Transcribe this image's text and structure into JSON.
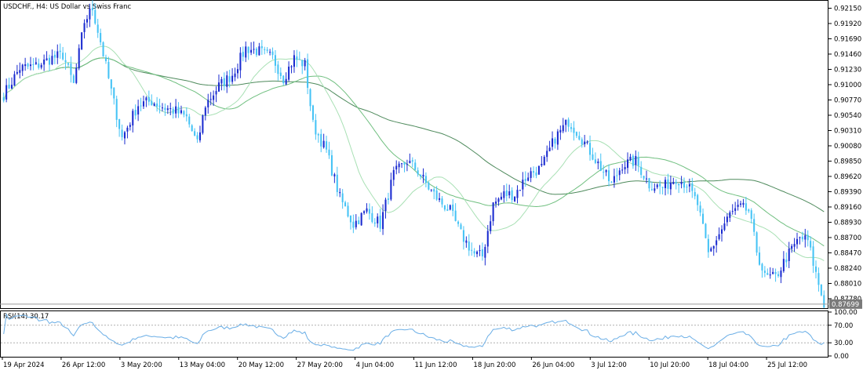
{
  "title": "USDCHF., H4:  US Dollar vs Swiss Franc",
  "colors": {
    "bull": "#1a2bd0",
    "bear": "#45c3f5",
    "ma_fast": "#a8e0b4",
    "ma_mid": "#6fbf7f",
    "ma_slow": "#4e8a5c",
    "rsi": "#6aaee6",
    "current_price_tag": "#7a7a7a"
  },
  "price_axis": {
    "ticks": [
      "0.92150",
      "0.91920",
      "0.91690",
      "0.91460",
      "0.91230",
      "0.91000",
      "0.90770",
      "0.90540",
      "0.90310",
      "0.90080",
      "0.89850",
      "0.89620",
      "0.89390",
      "0.89160",
      "0.88930",
      "0.88700",
      "0.88470",
      "0.88240",
      "0.88010",
      "0.87780"
    ],
    "current_price": "0.87699"
  },
  "rsi_panel": {
    "label": "RSI(14) 30.17",
    "ticks": [
      "100.00",
      "70.00",
      "30.00",
      "0.00"
    ]
  },
  "time_axis": {
    "labels": [
      "19 Apr 2024",
      "26 Apr 12:00",
      "3 May 20:00",
      "13 May 04:00",
      "20 May 12:00",
      "27 May 20:00",
      "4 Jun 04:00",
      "11 Jun 12:00",
      "18 Jun 20:00",
      "26 Jun 04:00",
      "3 Jul 12:00",
      "10 Jul 20:00",
      "18 Jul 04:00",
      "25 Jul 12:00"
    ]
  },
  "chart_data": {
    "type": "candlestick",
    "symbol": "USDCHF.",
    "timeframe": "H4",
    "ylim": [
      0.8765,
      0.9225
    ],
    "keypoints": [
      [
        0,
        0.9085
      ],
      [
        6,
        0.9125
      ],
      [
        12,
        0.9128
      ],
      [
        18,
        0.914
      ],
      [
        22,
        0.9145
      ],
      [
        26,
        0.91
      ],
      [
        30,
        0.9195
      ],
      [
        33,
        0.9215
      ],
      [
        36,
        0.9165
      ],
      [
        40,
        0.909
      ],
      [
        44,
        0.902
      ],
      [
        50,
        0.907
      ],
      [
        55,
        0.9075
      ],
      [
        60,
        0.9065
      ],
      [
        64,
        0.906
      ],
      [
        68,
        0.905
      ],
      [
        72,
        0.901
      ],
      [
        75,
        0.907
      ],
      [
        80,
        0.9098
      ],
      [
        85,
        0.9115
      ],
      [
        90,
        0.9155
      ],
      [
        95,
        0.915
      ],
      [
        100,
        0.914
      ],
      [
        104,
        0.911
      ],
      [
        108,
        0.914
      ],
      [
        112,
        0.913
      ],
      [
        115,
        0.904
      ],
      [
        120,
        0.9
      ],
      [
        125,
        0.893
      ],
      [
        130,
        0.889
      ],
      [
        135,
        0.891
      ],
      [
        140,
        0.889
      ],
      [
        145,
        0.8965
      ],
      [
        150,
        0.8985
      ],
      [
        154,
        0.897
      ],
      [
        158,
        0.8945
      ],
      [
        162,
        0.8925
      ],
      [
        166,
        0.891
      ],
      [
        170,
        0.8875
      ],
      [
        175,
        0.8845
      ],
      [
        178,
        0.8842
      ],
      [
        182,
        0.892
      ],
      [
        186,
        0.8935
      ],
      [
        190,
        0.8935
      ],
      [
        195,
        0.8965
      ],
      [
        200,
        0.8975
      ],
      [
        205,
        0.902
      ],
      [
        210,
        0.9045
      ],
      [
        214,
        0.9025
      ],
      [
        218,
        0.9
      ],
      [
        222,
        0.8975
      ],
      [
        226,
        0.895
      ],
      [
        230,
        0.898
      ],
      [
        235,
        0.8985
      ],
      [
        240,
        0.895
      ],
      [
        245,
        0.8945
      ],
      [
        250,
        0.896
      ],
      [
        254,
        0.895
      ],
      [
        258,
        0.892
      ],
      [
        262,
        0.8845
      ],
      [
        266,
        0.8875
      ],
      [
        270,
        0.8905
      ],
      [
        274,
        0.8915
      ],
      [
        277,
        0.891
      ],
      [
        280,
        0.885
      ],
      [
        283,
        0.881
      ],
      [
        287,
        0.881
      ],
      [
        291,
        0.884
      ],
      [
        296,
        0.887
      ],
      [
        299,
        0.8865
      ],
      [
        302,
        0.8815
      ],
      [
        305,
        0.877
      ]
    ],
    "candle_count": 306,
    "moving_averages": [
      {
        "period_role": "fast",
        "color": "#a8e0b4"
      },
      {
        "period_role": "mid",
        "color": "#6fbf7f"
      },
      {
        "period_role": "slow",
        "color": "#4e8a5c"
      }
    ],
    "rsi": {
      "period": 14,
      "last": 30.17,
      "levels": [
        70,
        30
      ],
      "ylim": [
        0,
        100
      ]
    }
  }
}
